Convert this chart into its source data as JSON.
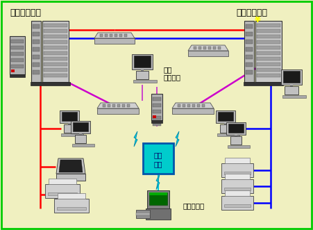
{
  "bg_color": "#f0f0c0",
  "border_color": "#00cc00",
  "title_left": "検診システム",
  "title_right": "検査システム",
  "label_hospital": "医院\nシステム",
  "label_kousen": "公衆\n回線",
  "label_clinic": "診療所端末"
}
